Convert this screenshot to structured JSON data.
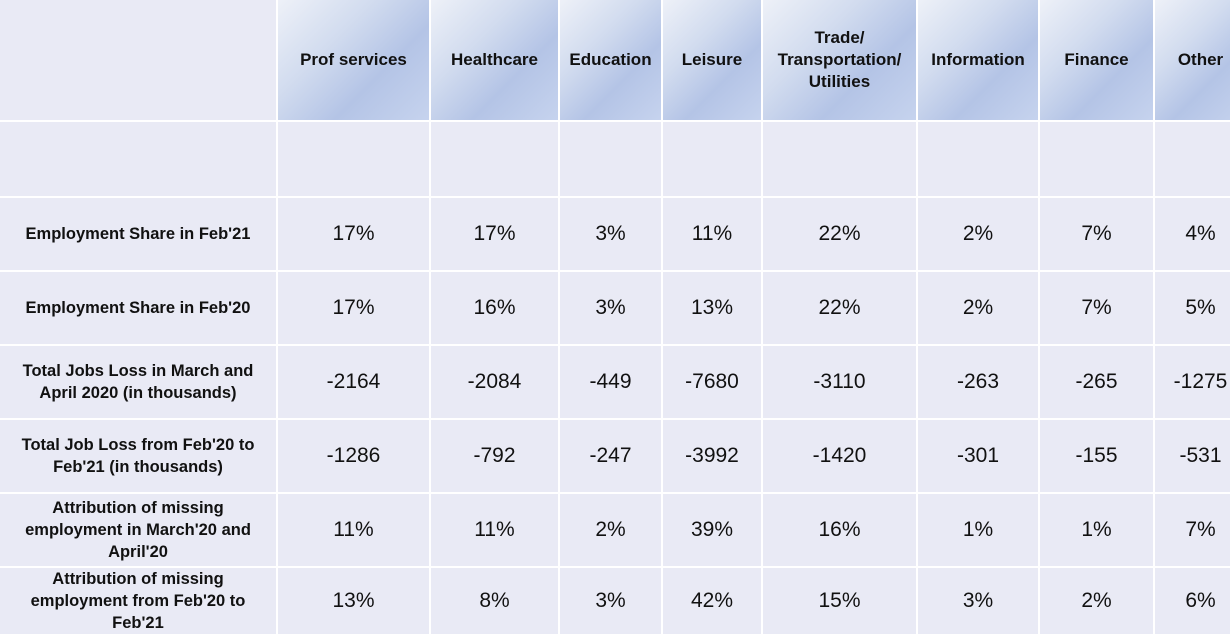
{
  "table": {
    "columns": [
      "Prof services",
      "Healthcare",
      "Education",
      "Leisure",
      "Trade/\nTransportation/\nUtilities",
      "Information",
      "Finance",
      "Other"
    ],
    "rows": [
      {
        "label": "Employment Share in Feb'21",
        "values": [
          "17%",
          "17%",
          "3%",
          "11%",
          "22%",
          "2%",
          "7%",
          "4%"
        ]
      },
      {
        "label": "Employment Share in Feb'20",
        "values": [
          "17%",
          "16%",
          "3%",
          "13%",
          "22%",
          "2%",
          "7%",
          "5%"
        ]
      },
      {
        "label": "Total Jobs Loss in March and\nApril 2020 (in thousands)",
        "values": [
          "-2164",
          "-2084",
          "-449",
          "-7680",
          "-3110",
          "-263",
          "-265",
          "-1275"
        ]
      },
      {
        "label": "Total Job Loss from Feb'20 to\nFeb'21 (in thousands)",
        "values": [
          "-1286",
          "-792",
          "-247",
          "-3992",
          "-1420",
          "-301",
          "-155",
          "-531"
        ]
      },
      {
        "label": "Attribution of missing\nemployment in March'20 and\nApril'20",
        "values": [
          "11%",
          "11%",
          "2%",
          "39%",
          "16%",
          "1%",
          "1%",
          "7%"
        ]
      },
      {
        "label": "Attribution of missing\nemployment from Feb'20 to\nFeb'21",
        "values": [
          "13%",
          "8%",
          "3%",
          "42%",
          "15%",
          "3%",
          "2%",
          "6%"
        ]
      }
    ]
  },
  "colors": {
    "cell_background": "#e9eaf5",
    "header_gradient_start": "#eef1f8",
    "header_gradient_mid": "#b4c4e6",
    "grid_lines": "#ffffff",
    "text": "#111111"
  }
}
